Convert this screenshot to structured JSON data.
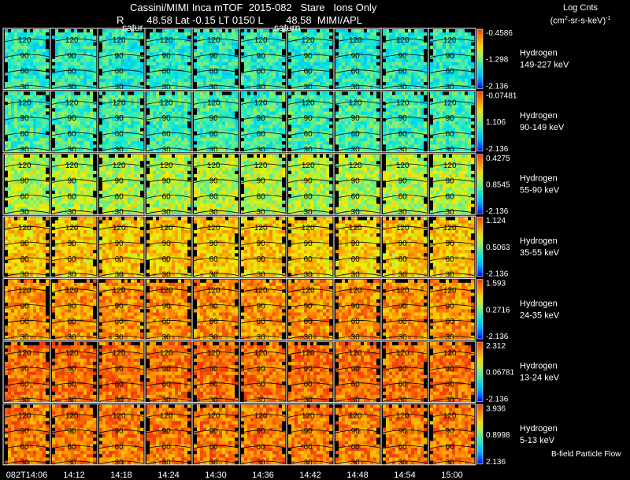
{
  "header": {
    "title": "Cassini/MIMI Inca mTOF  2015-082   Stare   Ions Only",
    "subtitle": "R        48.58 Lat -0.15 LT 0150 L        48.58  MIMI/APL",
    "overlay_labels": [
      "satur",
      "saturn"
    ],
    "units_line1": "Log Cnts",
    "units_line2_pre": "(cm",
    "units_sup": "2",
    "units_line2_post": "-sr-s-keV)",
    "units_sup2": "-1"
  },
  "footer": {
    "note": "B-field Particle Flow"
  },
  "chart_data": {
    "type": "heatmap",
    "title": "Cassini/MIMI Inca mTOF  2015-082   Stare   Ions Only",
    "x_tick_labels": [
      "082T14:06",
      "14:12",
      "14:18",
      "14:24",
      "14:30",
      "14:36",
      "14:42",
      "14:48",
      "14:54",
      "15:00"
    ],
    "image_contour_labels": [
      "120",
      "90",
      "60",
      "30"
    ],
    "colorscale": "rainbow",
    "panels": [
      {
        "species": "Hydrogen",
        "energy": "149-227 keV",
        "cb_max": "-0.4586",
        "cb_mid": "-1.298",
        "cb_min": "-2.136",
        "mean_level": 0.38
      },
      {
        "species": "Hydrogen",
        "energy": "90-149 keV",
        "cb_max": "-0.07481",
        "cb_mid": "1.106",
        "cb_min": "-2.136",
        "mean_level": 0.42
      },
      {
        "species": "Hydrogen",
        "energy": "55-90 keV",
        "cb_max": "0.4275",
        "cb_mid": "0.8545",
        "cb_min": "-2.136",
        "mean_level": 0.58
      },
      {
        "species": "Hydrogen",
        "energy": "35-55 keV",
        "cb_max": "1.124",
        "cb_mid": "0.5063",
        "cb_min": "-2.136",
        "mean_level": 0.74
      },
      {
        "species": "Hydrogen",
        "energy": "24-35 keV",
        "cb_max": "1.593",
        "cb_mid": "0.2716",
        "cb_min": "-2.136",
        "mean_level": 0.84
      },
      {
        "species": "Hydrogen",
        "energy": "13-24 keV",
        "cb_max": "2.312",
        "cb_mid": "0.06781",
        "cb_min": "-2.136",
        "mean_level": 0.9
      },
      {
        "species": "Hydrogen",
        "energy": "5-13 keV",
        "cb_max": "3.936",
        "cb_mid": "0.8998",
        "cb_min": "2.136",
        "mean_level": 0.88
      }
    ]
  }
}
